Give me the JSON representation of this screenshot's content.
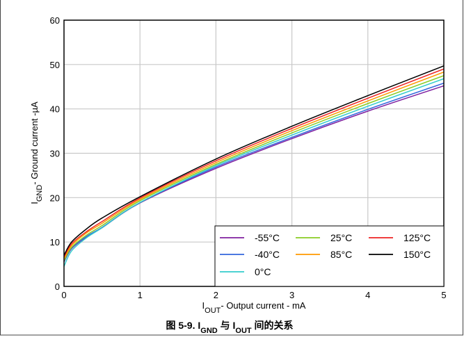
{
  "chart_data": {
    "type": "line",
    "title_parts": [
      {
        "t": "图 5-9. I",
        "sub": false
      },
      {
        "t": "GND",
        "sub": true
      },
      {
        "t": " 与 I",
        "sub": false
      },
      {
        "t": "OUT",
        "sub": true
      },
      {
        "t": " 间的关系",
        "sub": false
      }
    ],
    "xlabel_parts": [
      {
        "t": "I",
        "sub": false
      },
      {
        "t": "OUT",
        "sub": true
      },
      {
        "t": "- Output current - mA",
        "sub": false
      }
    ],
    "ylabel_parts": [
      {
        "t": "I",
        "sub": false
      },
      {
        "t": "GND",
        "sub": true
      },
      {
        "t": "- Ground current -µA",
        "sub": false
      }
    ],
    "xlim": [
      0,
      5
    ],
    "ylim": [
      0,
      60
    ],
    "xticks": [
      0,
      1,
      2,
      3,
      4,
      5
    ],
    "yticks": [
      0,
      10,
      20,
      30,
      40,
      50,
      60
    ],
    "grid": true,
    "legend_position": "bottom-right",
    "series": [
      {
        "name": "-55°C",
        "color": "#7f1f9f",
        "x": [
          0,
          0.1,
          0.3,
          0.5,
          1,
          2,
          3,
          4,
          5
        ],
        "y": [
          5.5,
          8.5,
          11.2,
          13.2,
          18.8,
          26.6,
          33.3,
          39.5,
          45.2
        ]
      },
      {
        "name": "-40°C",
        "color": "#3366dd",
        "x": [
          0,
          0.1,
          0.3,
          0.5,
          1,
          2,
          3,
          4,
          5
        ],
        "y": [
          5.6,
          8.6,
          11.3,
          13.3,
          18.9,
          26.9,
          33.6,
          39.9,
          45.8
        ]
      },
      {
        "name": "0°C",
        "color": "#33cccc",
        "x": [
          0,
          0.1,
          0.3,
          0.5,
          1,
          2,
          3,
          4,
          5
        ],
        "y": [
          4.5,
          8.0,
          11.0,
          13.2,
          18.9,
          27.2,
          34.1,
          40.6,
          46.8
        ]
      },
      {
        "name": "25°C",
        "color": "#88cc22",
        "x": [
          0,
          0.1,
          0.3,
          0.5,
          1,
          2,
          3,
          4,
          5
        ],
        "y": [
          5.8,
          8.8,
          11.6,
          13.7,
          19.3,
          27.5,
          34.6,
          41.2,
          47.5
        ]
      },
      {
        "name": "85°C",
        "color": "#ff9900",
        "x": [
          0,
          0.1,
          0.3,
          0.5,
          1,
          2,
          3,
          4,
          5
        ],
        "y": [
          6.2,
          9.2,
          12.1,
          14.2,
          19.6,
          27.9,
          35.1,
          41.8,
          48.3
        ]
      },
      {
        "name": "125°C",
        "color": "#ee2222",
        "x": [
          0,
          0.1,
          0.3,
          0.5,
          1,
          2,
          3,
          4,
          5
        ],
        "y": [
          6.6,
          9.6,
          12.4,
          14.6,
          19.9,
          28.3,
          35.6,
          42.4,
          49.0
        ]
      },
      {
        "name": "150°C",
        "color": "#000000",
        "x": [
          0,
          0.1,
          0.3,
          0.5,
          1,
          2,
          3,
          4,
          5
        ],
        "y": [
          7.0,
          10.0,
          13.0,
          15.4,
          20.2,
          28.7,
          36.1,
          43.0,
          49.7
        ]
      }
    ],
    "legend_order": [
      "-55°C",
      "25°C",
      "125°C",
      "-40°C",
      "85°C",
      "150°C",
      "0°C"
    ]
  }
}
